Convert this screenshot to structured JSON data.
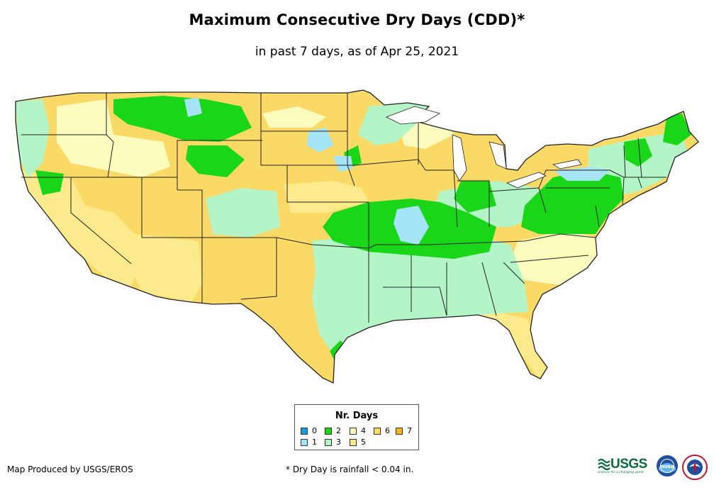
{
  "header": {
    "title": "Maximum Consecutive Dry Days (CDD)*",
    "subtitle": "in past 7 days, as of Apr 25, 2021"
  },
  "map": {
    "region": "Contiguous United States",
    "palette": {
      "c0": "#1e9be0",
      "c1": "#a5e3f7",
      "c2": "#19d619",
      "c3": "#b4f5c8",
      "c4": "#fbfbbe",
      "c5": "#fcea8c",
      "c6": "#fbd966",
      "c7": "#f6b80c",
      "border": "#222222"
    }
  },
  "legend": {
    "title": "Nr. Days",
    "items": [
      {
        "label": "0",
        "color": "#1e9be0"
      },
      {
        "label": "1",
        "color": "#a5e3f7"
      },
      {
        "label": "2",
        "color": "#19d619"
      },
      {
        "label": "3",
        "color": "#b4f5c8"
      },
      {
        "label": "4",
        "color": "#fbfbbe"
      },
      {
        "label": "5",
        "color": "#fcea8c"
      },
      {
        "label": "6",
        "color": "#fbd966"
      },
      {
        "label": "7",
        "color": "#f6b80c"
      }
    ]
  },
  "footer": {
    "credit": "Map Produced by USGS/EROS",
    "footnote": "* Dry Day is rainfall < 0.04 in.",
    "usgs_logo_text": "USGS",
    "usgs_tagline": "science for a changing world",
    "noaa_logo_text": "noaa",
    "nws_logo_icon": "nws-logo-icon"
  }
}
